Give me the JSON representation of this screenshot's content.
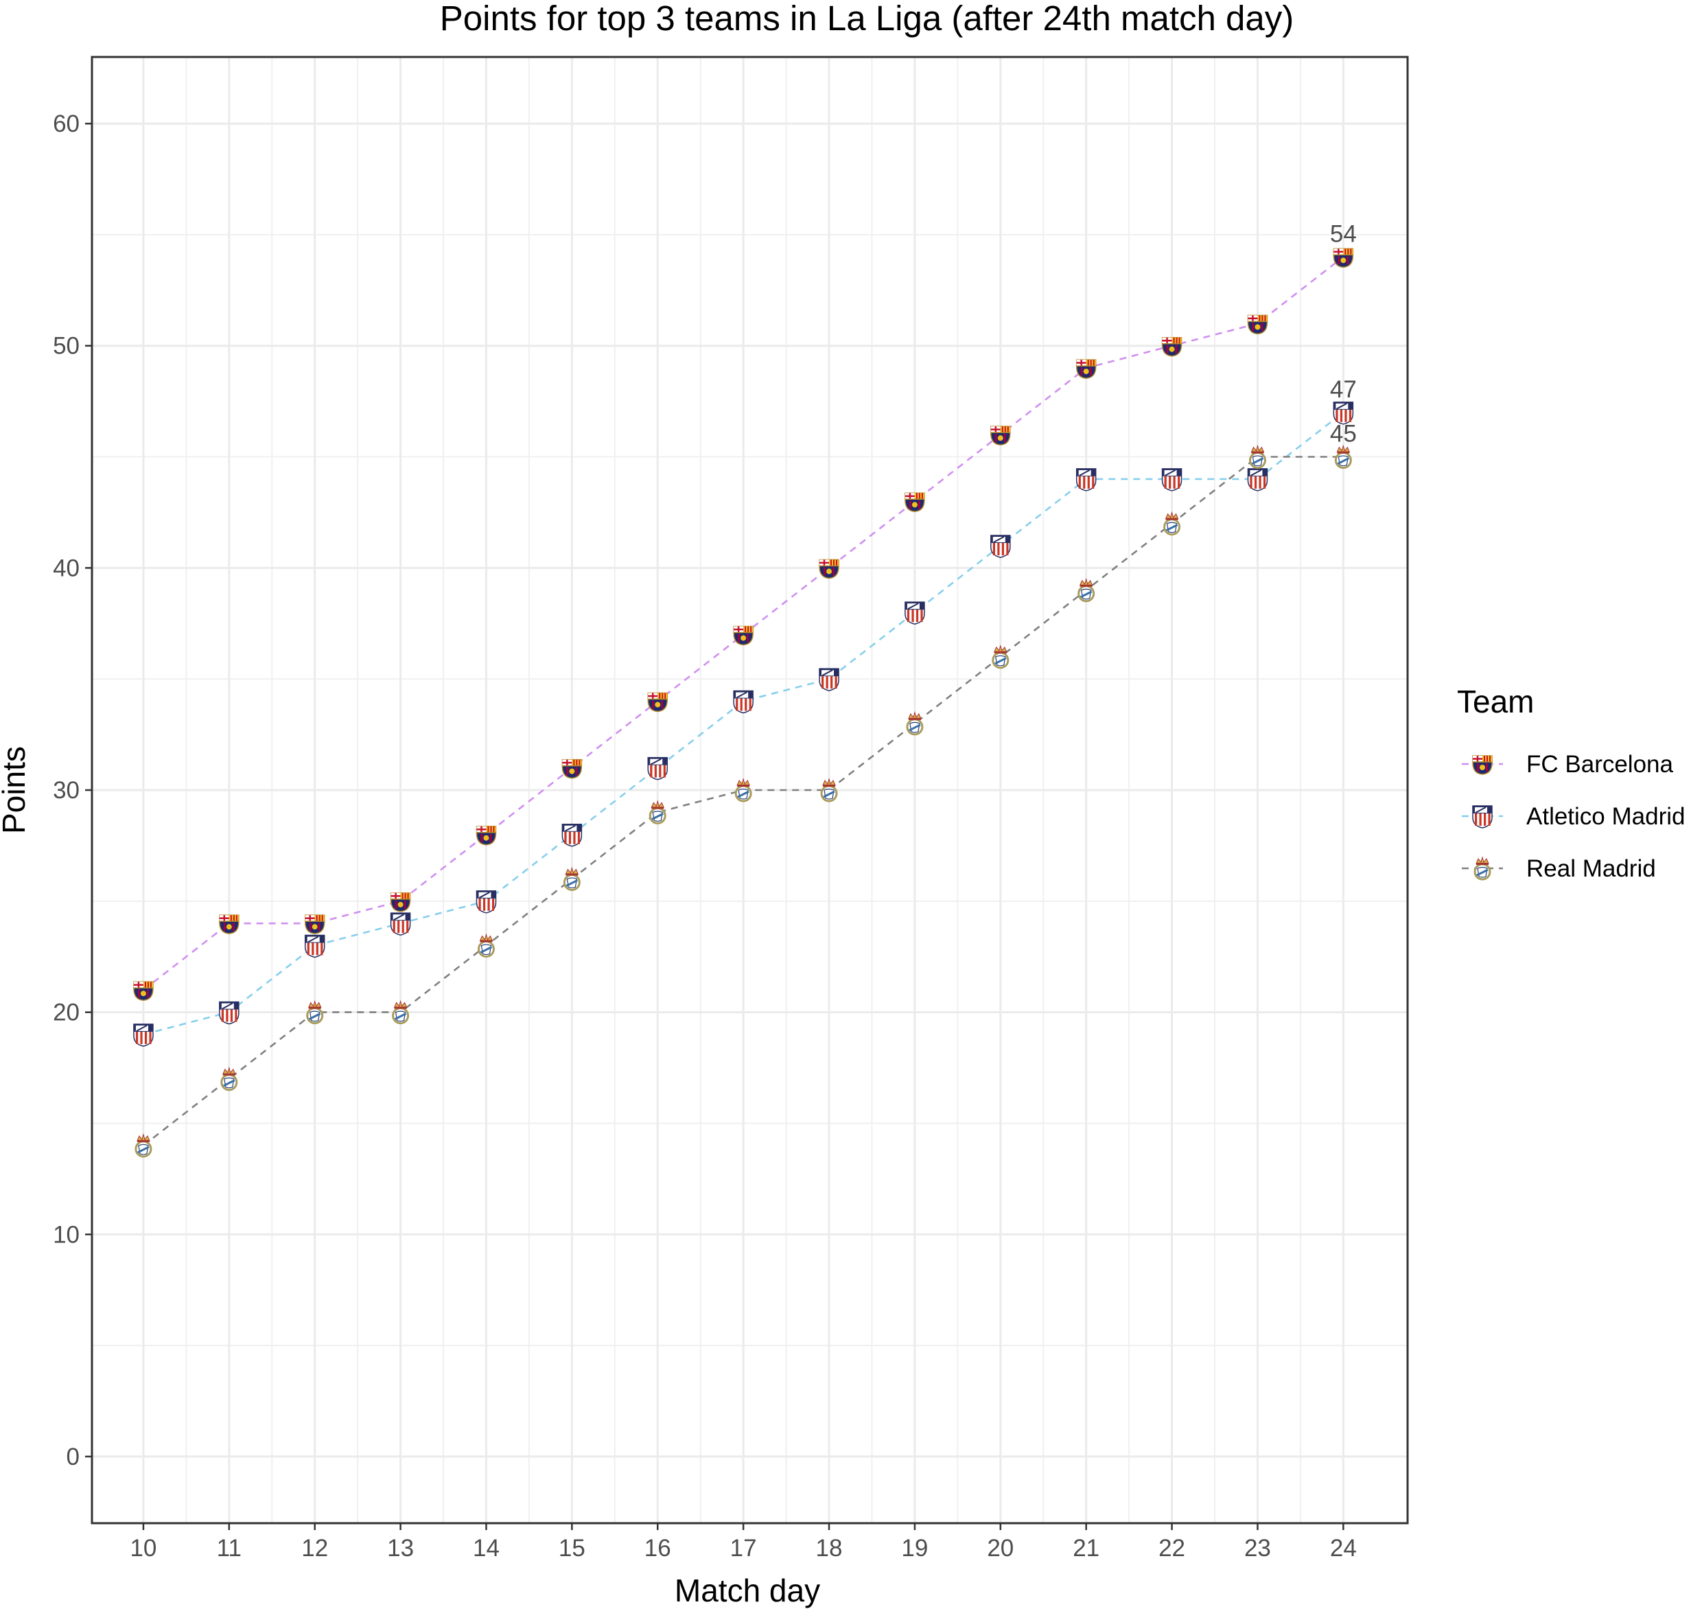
{
  "chart_data": {
    "type": "line",
    "title": "Points for top 3 teams in La Liga (after 24th match day)",
    "xlabel": "Match day",
    "ylabel": "Points",
    "x": [
      10,
      11,
      12,
      13,
      14,
      15,
      16,
      17,
      18,
      19,
      20,
      21,
      22,
      23,
      24
    ],
    "xlim": [
      9.4,
      24.75
    ],
    "ylim": [
      -3,
      63
    ],
    "y_ticks": [
      0,
      10,
      20,
      30,
      40,
      50,
      60
    ],
    "grid": true,
    "legend_title": "Team",
    "legend_position": "right",
    "series": [
      {
        "name": "FC Barcelona",
        "color": "#d08ff0",
        "icon": "fc-barcelona-crest-icon",
        "values": [
          21,
          24,
          24,
          25,
          28,
          31,
          34,
          37,
          40,
          43,
          46,
          49,
          50,
          51,
          54
        ]
      },
      {
        "name": "Atletico Madrid",
        "color": "#87cfec",
        "icon": "atletico-madrid-crest-icon",
        "values": [
          19,
          20,
          23,
          24,
          25,
          28,
          31,
          34,
          35,
          38,
          41,
          44,
          44,
          44,
          47
        ]
      },
      {
        "name": "Real Madrid",
        "color": "#808080",
        "icon": "real-madrid-crest-icon",
        "values": [
          14,
          17,
          20,
          20,
          23,
          26,
          29,
          30,
          30,
          33,
          36,
          39,
          42,
          45,
          45
        ]
      }
    ],
    "end_labels": [
      "54",
      "47",
      "45"
    ]
  }
}
